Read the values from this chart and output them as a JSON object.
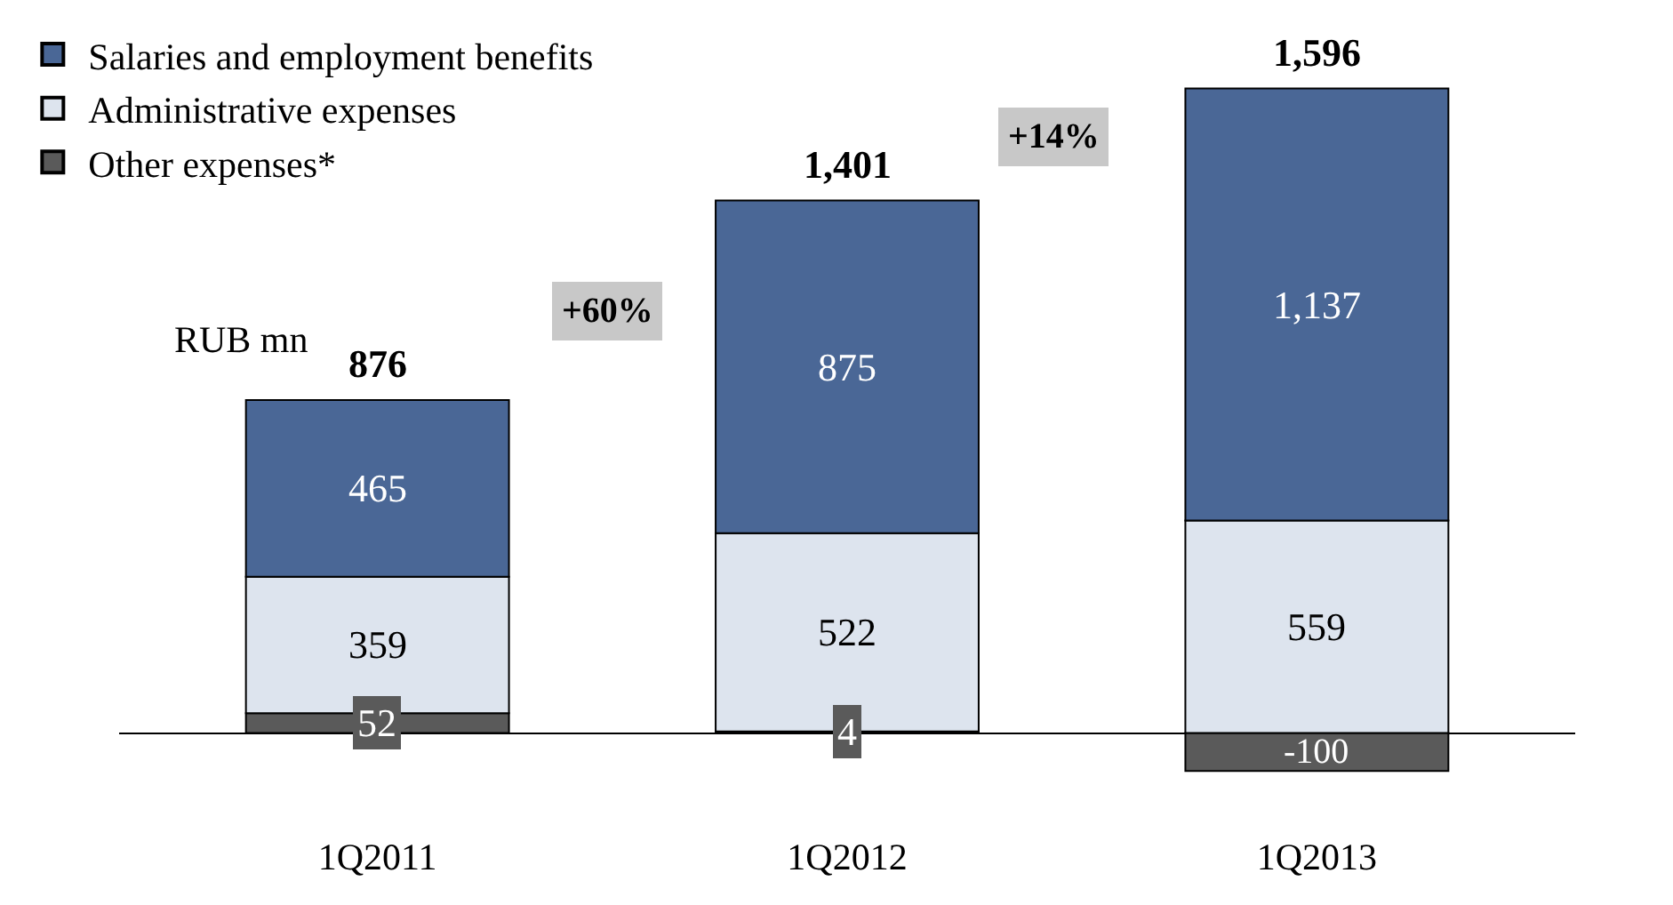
{
  "chart_data": {
    "type": "bar",
    "stacked": true,
    "legend": "top left",
    "categories": [
      "1Q2011",
      "1Q2012",
      "1Q2013"
    ],
    "series": [
      {
        "name": "Other expenses*",
        "color": "#5a5a5a",
        "values": [
          52,
          4,
          -100
        ],
        "value_labels": [
          "52",
          "4",
          "-100"
        ]
      },
      {
        "name": "Administrative expenses",
        "color": "#dde4ee",
        "values": [
          359,
          522,
          559
        ],
        "value_labels": [
          "359",
          "522",
          "559"
        ]
      },
      {
        "name": "Salaries and employment benefits",
        "color": "#4a6796",
        "values": [
          465,
          875,
          1137
        ],
        "value_labels": [
          "465",
          "875",
          "1,137"
        ]
      }
    ],
    "totals": [
      "876",
      "1,401",
      "1,596"
    ],
    "annotations": [
      "+60%",
      "+14%",
      "RUB mn"
    ]
  }
}
